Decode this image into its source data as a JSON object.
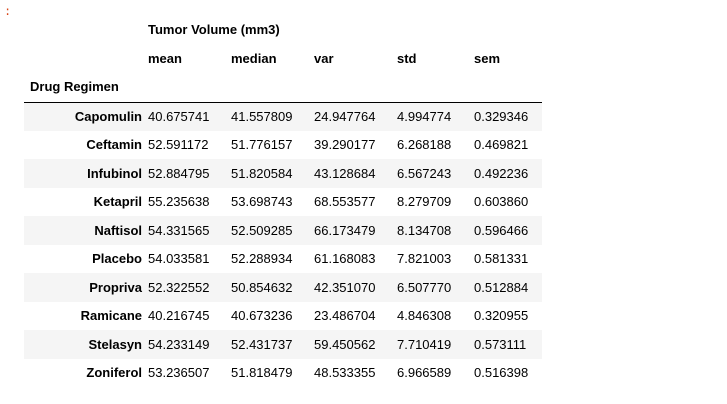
{
  "prompt_marker": ":",
  "table": {
    "top_header": "Tumor Volume (mm3)",
    "columns": [
      "mean",
      "median",
      "var",
      "std",
      "sem"
    ],
    "index_name": "Drug Regimen",
    "rows": [
      {
        "label": "Capomulin",
        "values": [
          "40.675741",
          "41.557809",
          "24.947764",
          "4.994774",
          "0.329346"
        ]
      },
      {
        "label": "Ceftamin",
        "values": [
          "52.591172",
          "51.776157",
          "39.290177",
          "6.268188",
          "0.469821"
        ]
      },
      {
        "label": "Infubinol",
        "values": [
          "52.884795",
          "51.820584",
          "43.128684",
          "6.567243",
          "0.492236"
        ]
      },
      {
        "label": "Ketapril",
        "values": [
          "55.235638",
          "53.698743",
          "68.553577",
          "8.279709",
          "0.603860"
        ]
      },
      {
        "label": "Naftisol",
        "values": [
          "54.331565",
          "52.509285",
          "66.173479",
          "8.134708",
          "0.596466"
        ]
      },
      {
        "label": "Placebo",
        "values": [
          "54.033581",
          "52.288934",
          "61.168083",
          "7.821003",
          "0.581331"
        ]
      },
      {
        "label": "Propriva",
        "values": [
          "52.322552",
          "50.854632",
          "42.351070",
          "6.507770",
          "0.512884"
        ]
      },
      {
        "label": "Ramicane",
        "values": [
          "40.216745",
          "40.673236",
          "23.486704",
          "4.846308",
          "0.320955"
        ]
      },
      {
        "label": "Stelasyn",
        "values": [
          "54.233149",
          "52.431737",
          "59.450562",
          "7.710419",
          "0.573111"
        ]
      },
      {
        "label": "Zoniferol",
        "values": [
          "53.236507",
          "51.818479",
          "48.533355",
          "6.966589",
          "0.516398"
        ]
      }
    ]
  }
}
